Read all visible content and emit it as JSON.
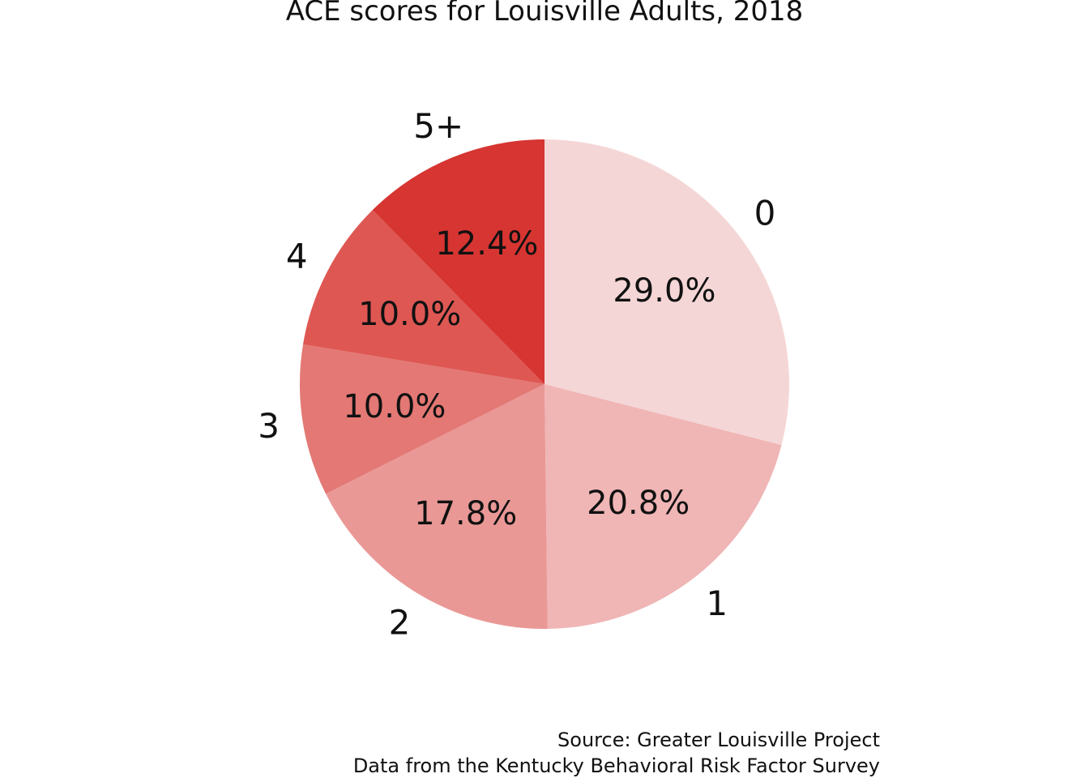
{
  "chart_data": {
    "type": "pie",
    "title": "ACE scores for Louisville Adults, 2018",
    "categories": [
      "0",
      "1",
      "2",
      "3",
      "4",
      "5+"
    ],
    "values": [
      29.0,
      20.8,
      17.8,
      10.0,
      10.0,
      12.4
    ],
    "value_labels": [
      "29.0%",
      "20.8%",
      "17.8%",
      "10.0%",
      "10.0%",
      "12.4%"
    ],
    "colors": [
      "#F5D6D6",
      "#F0B5B5",
      "#E99896",
      "#E37874",
      "#DE5753",
      "#D63532"
    ],
    "start": "12 o'clock",
    "direction": "clockwise",
    "legend": "none"
  },
  "source": {
    "line1": "Source: Greater Louisville Project",
    "line2": "Data from the Kentucky Behavioral Risk Factor Survey"
  }
}
